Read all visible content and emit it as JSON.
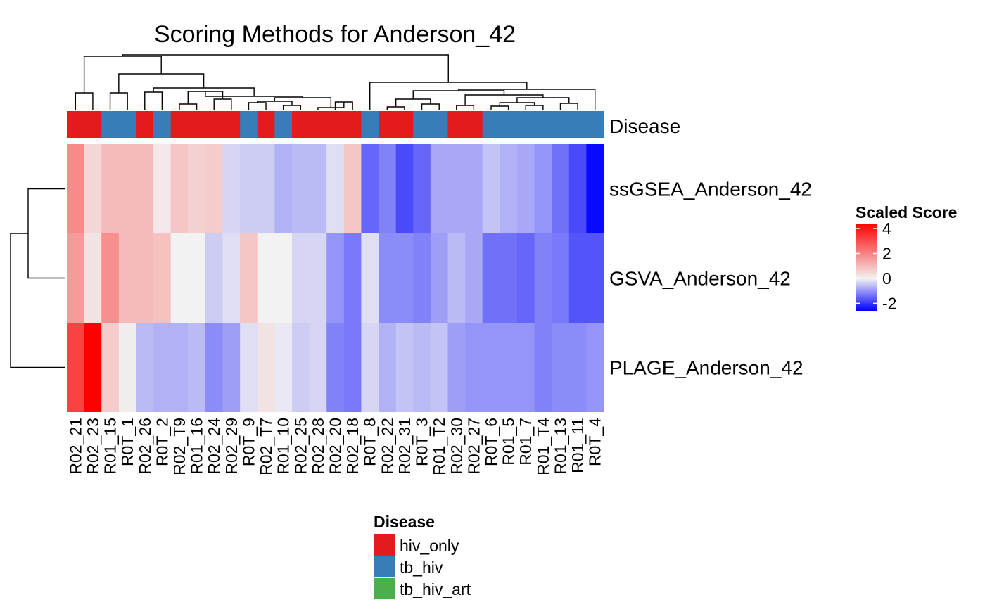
{
  "chart_data": {
    "type": "heatmap",
    "title": "Scoring Methods for Anderson_42",
    "columns": [
      "R02_21",
      "R02_23",
      "R01_15",
      "R0T_1",
      "R02_26",
      "R0T_2",
      "R02_19",
      "R01_16",
      "R02_24",
      "R02_29",
      "R0T_9",
      "R02_17",
      "R01_10",
      "R02_25",
      "R02_28",
      "R02_20",
      "R02_18",
      "R0T_8",
      "R02_22",
      "R02_31",
      "R0T_3",
      "R01_12",
      "R02_30",
      "R02_27",
      "R0T_6",
      "R01_5",
      "R01_7",
      "R01_14",
      "R01_13",
      "R01_11",
      "R0T_4"
    ],
    "column_labels_display": [
      "R02_21",
      "R02_23",
      "R01_15",
      "R0T_1",
      "R02_26",
      "R0T_2",
      "R02_T9",
      "R01_16",
      "R02_24",
      "R02_29",
      "R0T_9",
      "R02_T7",
      "R01_10",
      "R02_25",
      "R02_28",
      "R02_20",
      "R02_18",
      "R0T_8",
      "R02_22",
      "R02_31",
      "R0T_3",
      "R01_T2",
      "R02_30",
      "R02_27",
      "R0T_6",
      "R01_5",
      "R01_7",
      "R01_T4",
      "R01_13",
      "R01_11",
      "R0T_4"
    ],
    "disease": [
      "hiv_only",
      "hiv_only",
      "tb_hiv",
      "tb_hiv",
      "hiv_only",
      "tb_hiv",
      "hiv_only",
      "hiv_only",
      "hiv_only",
      "hiv_only",
      "tb_hiv",
      "hiv_only",
      "tb_hiv",
      "hiv_only",
      "hiv_only",
      "hiv_only",
      "hiv_only",
      "tb_hiv",
      "hiv_only",
      "hiv_only",
      "tb_hiv",
      "tb_hiv",
      "hiv_only",
      "hiv_only",
      "tb_hiv",
      "tb_hiv",
      "tb_hiv",
      "tb_hiv",
      "tb_hiv",
      "tb_hiv",
      "tb_hiv"
    ],
    "annotation_label": "Disease",
    "rows": [
      "ssGSEA_Anderson_42",
      "GSVA_Anderson_42",
      "PLAGE_Anderson_42"
    ],
    "values": [
      [
        1.9,
        0.5,
        1.0,
        1.0,
        1.0,
        0.2,
        0.8,
        0.6,
        0.7,
        -0.3,
        -0.4,
        -0.4,
        -0.7,
        -0.6,
        -0.6,
        -0.2,
        0.8,
        -1.5,
        -1.2,
        -1.8,
        -1.5,
        -0.8,
        -0.8,
        -0.8,
        -0.5,
        -0.7,
        -0.8,
        -1.0,
        -1.4,
        -1.8,
        -2.5
      ],
      [
        1.6,
        0.3,
        1.8,
        1.0,
        1.0,
        0.9,
        0.0,
        0.0,
        -0.4,
        -0.2,
        0.8,
        0.0,
        0.0,
        -0.3,
        -0.3,
        -1.0,
        -1.3,
        -0.2,
        -1.1,
        -1.1,
        -1.2,
        -0.9,
        -0.6,
        -0.8,
        -1.4,
        -1.4,
        -1.5,
        -1.2,
        -1.3,
        -1.7,
        -1.7
      ],
      [
        3.2,
        4.4,
        0.7,
        0.1,
        -0.6,
        -0.7,
        -0.7,
        -0.6,
        -1.1,
        -0.9,
        -0.2,
        0.3,
        -0.1,
        -0.4,
        -0.3,
        -1.2,
        -1.3,
        -0.3,
        -0.7,
        -0.5,
        -0.6,
        -0.5,
        -0.9,
        -1.0,
        -1.0,
        -1.0,
        -1.0,
        -1.2,
        -1.1,
        -1.1,
        -1.0
      ]
    ],
    "legend": {
      "title": "Scaled Score",
      "ticks": [
        4,
        2,
        0,
        -2
      ],
      "range": [
        -2.6,
        4.4
      ],
      "colors": {
        "low": "#0000FF",
        "mid": "#F2F2F2",
        "high": "#FF0000"
      }
    },
    "disease_legend": {
      "title": "Disease",
      "entries": [
        {
          "label": "hiv_only",
          "color": "#E41A1C"
        },
        {
          "label": "tb_hiv",
          "color": "#377EB8"
        },
        {
          "label": "tb_hiv_art",
          "color": "#4DAF4A"
        }
      ]
    }
  }
}
